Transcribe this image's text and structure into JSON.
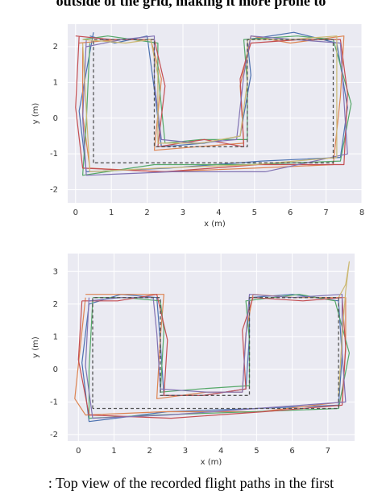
{
  "header_text": "outside of the grid, making it more prone to",
  "chart_data": [
    {
      "type": "line",
      "xlabel": "x (m)",
      "ylabel": "y (m)",
      "xlim": [
        -0.22,
        8
      ],
      "ylim": [
        -2.37,
        2.63
      ],
      "xticks": [
        0,
        1,
        2,
        3,
        4,
        5,
        6,
        7,
        8
      ],
      "yticks": [
        -2,
        -1,
        0,
        1,
        2
      ],
      "grid": true,
      "series": [
        {
          "color": "#4c72b0",
          "x": [
            0.4,
            1.1,
            2.0,
            2.2,
            2.4,
            3.6,
            4.6,
            4.9,
            4.8,
            6.1,
            7.3,
            7.6,
            7.4,
            5.2,
            2.6,
            0.3,
            0.1,
            0.5
          ],
          "y": [
            2.3,
            2.1,
            2.3,
            0.8,
            -0.8,
            -0.7,
            -0.5,
            1.2,
            2.2,
            2.4,
            2.1,
            0.3,
            -1.1,
            -1.2,
            -1.4,
            -1.5,
            0.2,
            2.4
          ]
        },
        {
          "color": "#dd8452",
          "x": [
            0.1,
            1.2,
            2.1,
            2.4,
            2.2,
            3.4,
            4.7,
            4.6,
            4.9,
            6.0,
            7.5,
            7.4,
            7.2,
            5.0,
            2.4,
            0.4,
            0.2,
            0.2
          ],
          "y": [
            2.1,
            2.2,
            2.2,
            1.1,
            -0.9,
            -0.8,
            -0.7,
            0.9,
            2.3,
            2.1,
            2.3,
            0.6,
            -1.3,
            -1.4,
            -1.5,
            -1.4,
            0.1,
            2.0
          ]
        },
        {
          "color": "#55a868",
          "x": [
            0.2,
            0.9,
            2.3,
            2.3,
            2.5,
            3.5,
            4.8,
            4.8,
            4.7,
            6.2,
            7.2,
            7.7,
            7.4,
            4.8,
            2.2,
            0.2,
            0.3,
            0.4
          ],
          "y": [
            2.2,
            2.3,
            2.1,
            1.3,
            -0.7,
            -0.6,
            -0.6,
            1.0,
            2.2,
            2.3,
            2.2,
            0.4,
            -1.2,
            -1.3,
            -1.3,
            -1.6,
            -0.1,
            2.1
          ]
        },
        {
          "color": "#c44e52",
          "x": [
            0.0,
            1.0,
            2.2,
            2.5,
            2.3,
            3.6,
            4.7,
            4.6,
            4.9,
            6.3,
            7.4,
            7.6,
            7.5,
            5.1,
            2.5,
            0.2,
            0.0,
            0.1
          ],
          "y": [
            2.3,
            2.2,
            2.2,
            0.9,
            -0.8,
            -0.6,
            -0.8,
            1.1,
            2.1,
            2.2,
            2.2,
            0.7,
            -1.3,
            -1.3,
            -1.5,
            -1.4,
            0.3,
            2.3
          ]
        },
        {
          "color": "#8172b3",
          "x": [
            0.3,
            1.3,
            2.2,
            2.2,
            2.4,
            3.4,
            4.5,
            4.7,
            4.9,
            6.1,
            7.4,
            7.5,
            7.6,
            5.3,
            2.7,
            0.3,
            0.2,
            0.3
          ],
          "y": [
            2.0,
            2.2,
            2.3,
            1.0,
            -0.6,
            -0.7,
            -0.6,
            1.2,
            2.3,
            2.2,
            2.1,
            0.5,
            -1.0,
            -1.5,
            -1.5,
            -1.6,
            0.0,
            2.2
          ]
        },
        {
          "color": "#ccb974",
          "x": [
            0.2,
            1.4,
            2.1,
            2.3,
            2.3,
            3.5,
            4.6,
            4.8,
            4.8,
            6.0,
            7.3,
            7.3,
            7.3,
            5.0,
            2.3,
            0.4,
            0.3,
            0.2
          ],
          "y": [
            2.2,
            2.1,
            2.2,
            1.2,
            -0.7,
            -0.7,
            -0.5,
            1.0,
            2.2,
            2.2,
            2.3,
            0.4,
            -1.1,
            -1.3,
            -1.4,
            -1.5,
            0.2,
            2.1
          ]
        },
        {
          "color": "#555555",
          "dash": true,
          "x": [
            0.5,
            0.5,
            2.2,
            2.2,
            4.8,
            4.8,
            7.2,
            7.2,
            0.5
          ],
          "y": [
            -1.25,
            2.2,
            2.2,
            -0.8,
            -0.8,
            2.2,
            2.2,
            -1.25,
            -1.25
          ]
        }
      ]
    },
    {
      "type": "line",
      "xlabel": "x (m)",
      "ylabel": "y (m)",
      "xlim": [
        -0.3,
        7.75
      ],
      "ylim": [
        -2.2,
        3.55
      ],
      "xticks": [
        0,
        1,
        2,
        3,
        4,
        5,
        6,
        7
      ],
      "yticks": [
        -2,
        -1,
        0,
        1,
        2,
        3
      ],
      "grid": true,
      "series": [
        {
          "color": "#4c72b0",
          "x": [
            0.3,
            1.2,
            2.2,
            2.3,
            2.4,
            3.5,
            4.7,
            4.8,
            4.8,
            6.0,
            7.3,
            7.4,
            7.3,
            5.0,
            2.5,
            0.3,
            0.1,
            0.3
          ],
          "y": [
            2.0,
            2.3,
            2.2,
            0.8,
            -0.8,
            -0.8,
            -0.6,
            1.0,
            2.2,
            2.3,
            2.1,
            0.4,
            -1.1,
            -1.2,
            -1.3,
            -1.6,
            0.2,
            2.0
          ]
        },
        {
          "color": "#dd8452",
          "x": [
            0.2,
            1.0,
            2.4,
            2.3,
            2.2,
            3.6,
            4.6,
            4.7,
            4.9,
            6.1,
            7.5,
            7.5,
            7.4,
            5.1,
            2.4,
            0.2,
            -0.1,
            0.2
          ],
          "y": [
            2.3,
            2.3,
            2.3,
            1.0,
            -0.9,
            -0.7,
            -0.7,
            1.1,
            2.3,
            2.2,
            2.2,
            0.6,
            -1.0,
            -1.3,
            -1.3,
            -1.4,
            -0.9,
            2.2
          ]
        },
        {
          "color": "#55a868",
          "x": [
            0.4,
            1.3,
            2.3,
            2.4,
            2.3,
            3.4,
            4.8,
            4.8,
            4.7,
            6.2,
            7.2,
            7.6,
            7.3,
            4.9,
            2.2,
            0.3,
            0.3,
            0.4
          ],
          "y": [
            2.2,
            2.2,
            2.1,
            1.2,
            -0.7,
            -0.6,
            -0.5,
            0.9,
            2.1,
            2.3,
            2.1,
            0.5,
            -1.2,
            -1.3,
            -1.4,
            -1.5,
            0.0,
            2.1
          ]
        },
        {
          "color": "#c44e52",
          "x": [
            0.1,
            1.1,
            2.2,
            2.5,
            2.4,
            3.5,
            4.7,
            4.6,
            4.9,
            6.3,
            7.4,
            7.5,
            7.4,
            5.2,
            2.6,
            0.3,
            0.0,
            0.1
          ],
          "y": [
            2.1,
            2.1,
            2.3,
            0.9,
            -0.8,
            -0.8,
            -0.6,
            1.2,
            2.2,
            2.1,
            2.2,
            0.7,
            -1.1,
            -1.3,
            -1.5,
            -1.4,
            0.3,
            2.1
          ]
        },
        {
          "color": "#8172b3",
          "x": [
            0.3,
            1.2,
            2.1,
            2.2,
            2.3,
            3.6,
            4.6,
            4.7,
            4.8,
            6.0,
            7.4,
            7.4,
            7.5,
            5.0,
            2.5,
            0.4,
            0.2,
            0.3
          ],
          "y": [
            2.1,
            2.2,
            2.2,
            1.1,
            -0.6,
            -0.7,
            -0.7,
            1.0,
            2.3,
            2.2,
            2.3,
            0.5,
            -1.0,
            -1.2,
            -1.4,
            -1.5,
            0.1,
            2.2
          ]
        },
        {
          "color": "#ccb974",
          "x": [
            7.3,
            7.5,
            7.6,
            7.5,
            7.4,
            7.3
          ],
          "y": [
            2.2,
            2.6,
            3.3,
            2.4,
            1.0,
            -0.8
          ]
        },
        {
          "color": "#555555",
          "dash": true,
          "x": [
            0.4,
            0.4,
            2.3,
            2.3,
            4.8,
            4.8,
            7.3,
            7.3,
            0.4
          ],
          "y": [
            -1.2,
            2.2,
            2.2,
            -0.8,
            -0.8,
            2.2,
            2.2,
            -1.2,
            -1.2
          ]
        }
      ]
    }
  ],
  "caption": ": Top view of the recorded flight paths in the first"
}
